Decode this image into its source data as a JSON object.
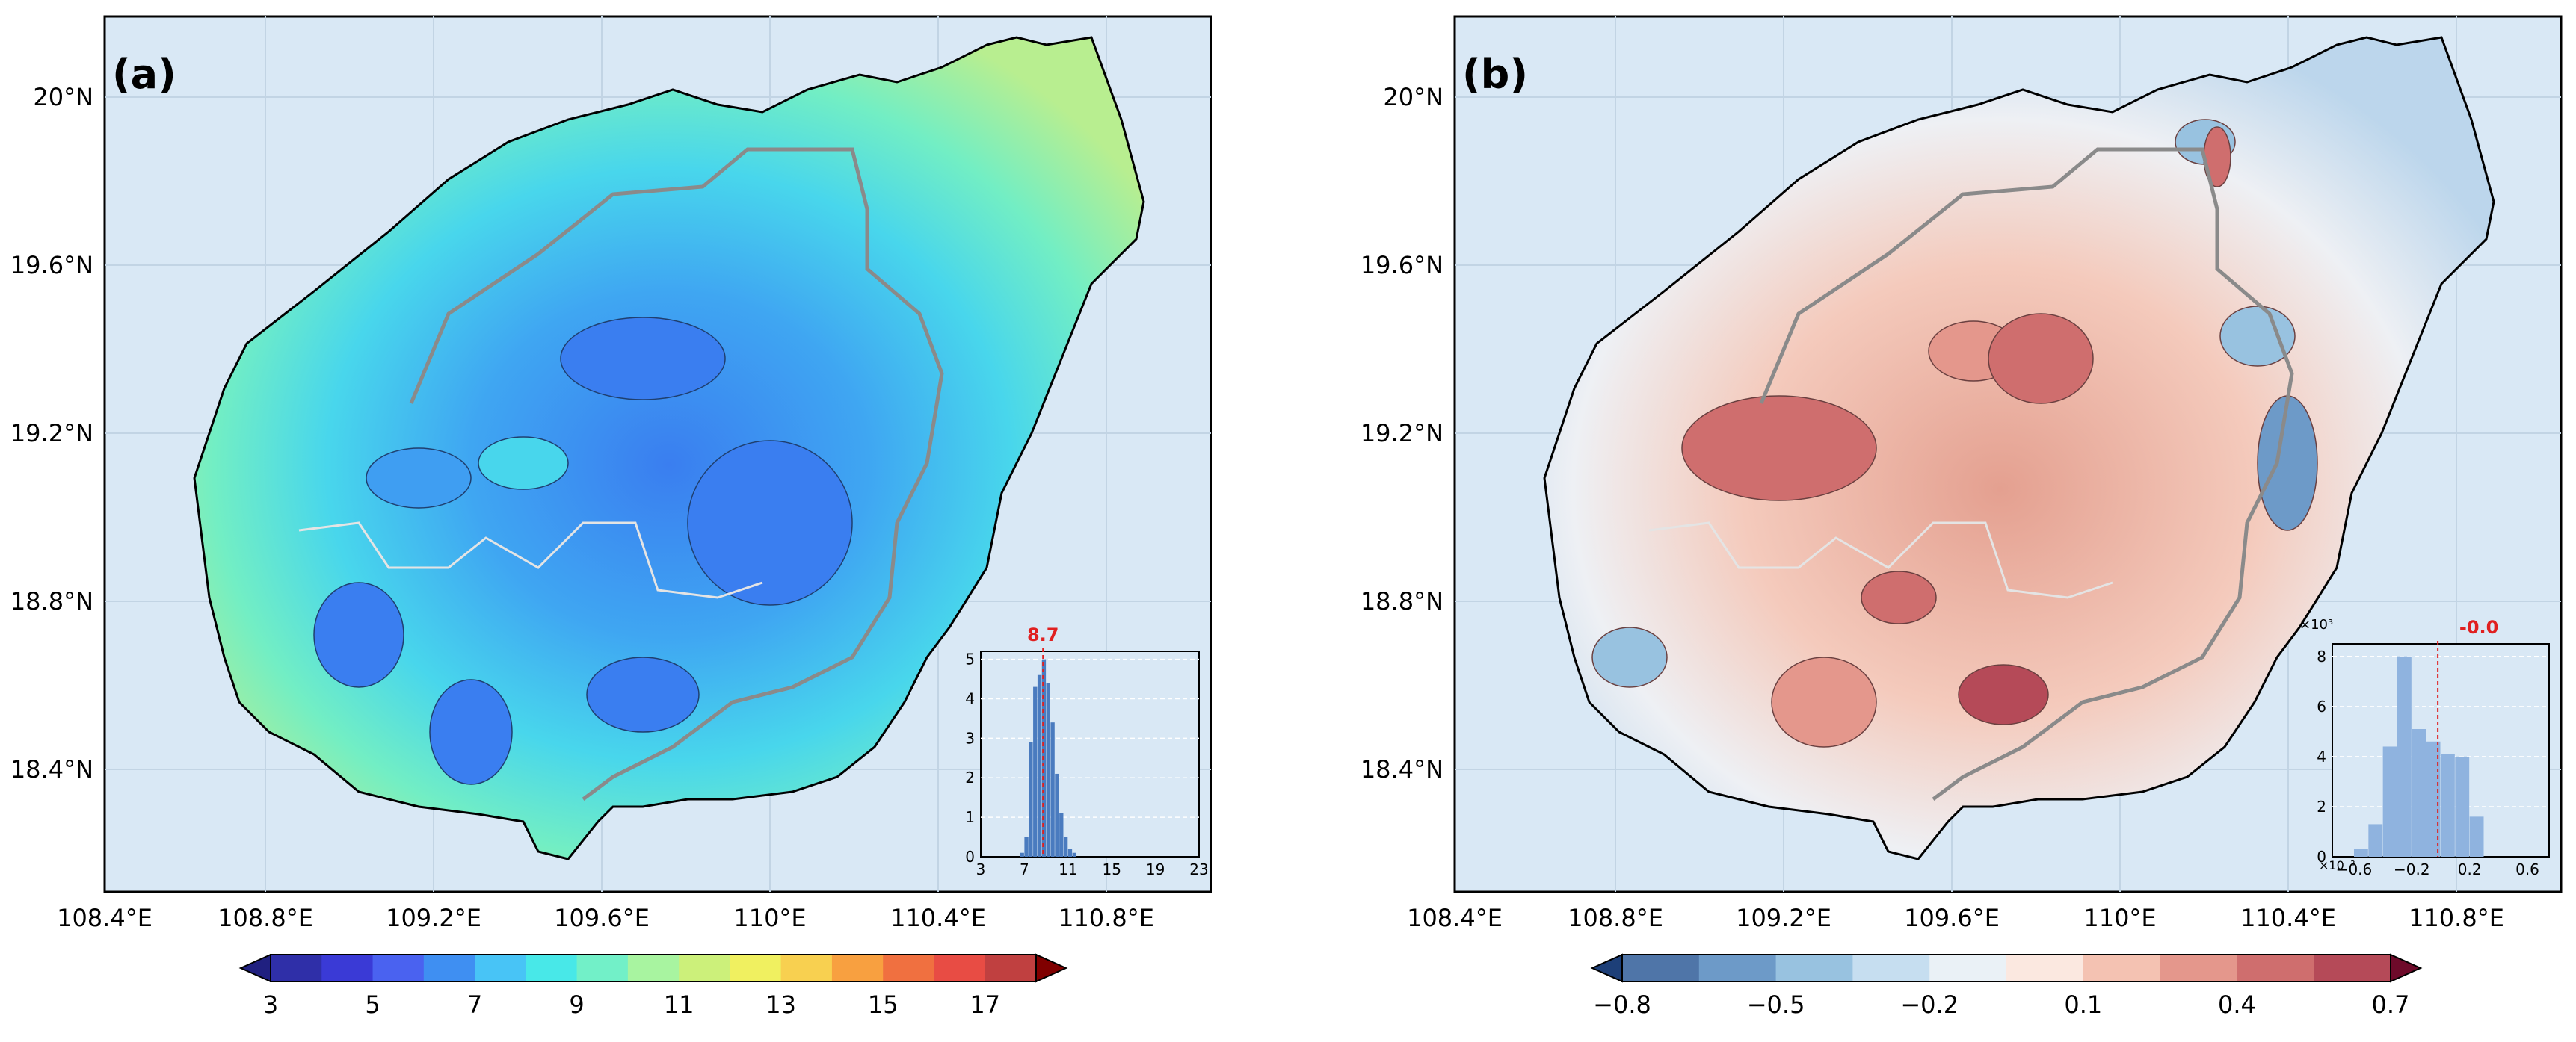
{
  "panels": [
    {
      "label": "(a)",
      "y_ticks": [
        "20°N",
        "19.6°N",
        "19.2°N",
        "18.8°N",
        "18.4°N"
      ],
      "x_ticks": [
        "108.4°E",
        "108.8°E",
        "109.2°E",
        "109.6°E",
        "110°E",
        "110.4°E",
        "110.8°E"
      ],
      "colorbar": {
        "ticks": [
          "3",
          "5",
          "7",
          "9",
          "11",
          "13",
          "15",
          "17"
        ],
        "colors": [
          "#2f2fa8",
          "#3a3ad6",
          "#4a62f0",
          "#3f8ff2",
          "#48c4f6",
          "#48e8e8",
          "#72f0c8",
          "#a8f4a0",
          "#ccf07a",
          "#f0f060",
          "#f8d050",
          "#f8a040",
          "#f07040",
          "#e84c44",
          "#c04040"
        ],
        "extend_low": "#202080",
        "extend_high": "#800000"
      },
      "inset": {
        "y_ticks": [
          "0",
          "1",
          "2",
          "3",
          "4",
          "5"
        ],
        "x_ticks": [
          "3",
          "7",
          "11",
          "15",
          "19",
          "23"
        ],
        "mean_label": "8.7",
        "mean_value": 8.7,
        "bin_width": 0.4,
        "bins": [
          {
            "x": 6.8,
            "h": 0.1
          },
          {
            "x": 7.2,
            "h": 0.5
          },
          {
            "x": 7.6,
            "h": 2.9
          },
          {
            "x": 8.0,
            "h": 4.3
          },
          {
            "x": 8.4,
            "h": 4.6
          },
          {
            "x": 8.8,
            "h": 5.0
          },
          {
            "x": 9.2,
            "h": 4.4
          },
          {
            "x": 9.6,
            "h": 3.4
          },
          {
            "x": 10.0,
            "h": 2.1
          },
          {
            "x": 10.4,
            "h": 1.1
          },
          {
            "x": 10.8,
            "h": 0.5
          },
          {
            "x": 11.2,
            "h": 0.2
          },
          {
            "x": 11.6,
            "h": 0.1
          }
        ],
        "xlim": [
          3,
          23
        ],
        "ylim": [
          0,
          5.2
        ],
        "bar_color": "#4a7bbf",
        "mean_color": "#e02020"
      }
    },
    {
      "label": "(b)",
      "y_ticks": [
        "20°N",
        "19.6°N",
        "19.2°N",
        "18.8°N",
        "18.4°N"
      ],
      "x_ticks": [
        "108.4°E",
        "108.8°E",
        "109.2°E",
        "109.6°E",
        "110°E",
        "110.4°E",
        "110.8°E"
      ],
      "colorbar": {
        "ticks": [
          "−0.8",
          "−0.5",
          "−0.2",
          "0.1",
          "0.4",
          "0.7"
        ],
        "colors": [
          "#4f75a8",
          "#6d9ac8",
          "#98c2e0",
          "#c6def0",
          "#eaf1f6",
          "#fbe8e0",
          "#f4c2b2",
          "#e4978c",
          "#cf6e6e",
          "#b54a58"
        ],
        "extend_low": "#1d3f78",
        "extend_high": "#6e0a2a"
      },
      "inset": {
        "y_ticks": [
          "0",
          "2",
          "4",
          "6",
          "8"
        ],
        "x_ticks": [
          "−0.6",
          "−0.2",
          "0.2",
          "0.6"
        ],
        "y_multiplier": "×10³",
        "x_multiplier": "×10⁻²",
        "mean_label": "-0.0",
        "mean_value": -0.02,
        "bin_width": 0.1,
        "bins": [
          {
            "x": -0.55,
            "h": 0.3
          },
          {
            "x": -0.45,
            "h": 1.3
          },
          {
            "x": -0.35,
            "h": 4.4
          },
          {
            "x": -0.25,
            "h": 8.0
          },
          {
            "x": -0.15,
            "h": 5.1
          },
          {
            "x": -0.05,
            "h": 4.6
          },
          {
            "x": 0.05,
            "h": 4.1
          },
          {
            "x": 0.15,
            "h": 4.0
          },
          {
            "x": 0.25,
            "h": 1.6
          }
        ],
        "xlim": [
          -0.75,
          0.75
        ],
        "ylim": [
          0,
          8.5
        ],
        "bar_color": "#8fb3df",
        "mean_color": "#e02020"
      }
    }
  ]
}
